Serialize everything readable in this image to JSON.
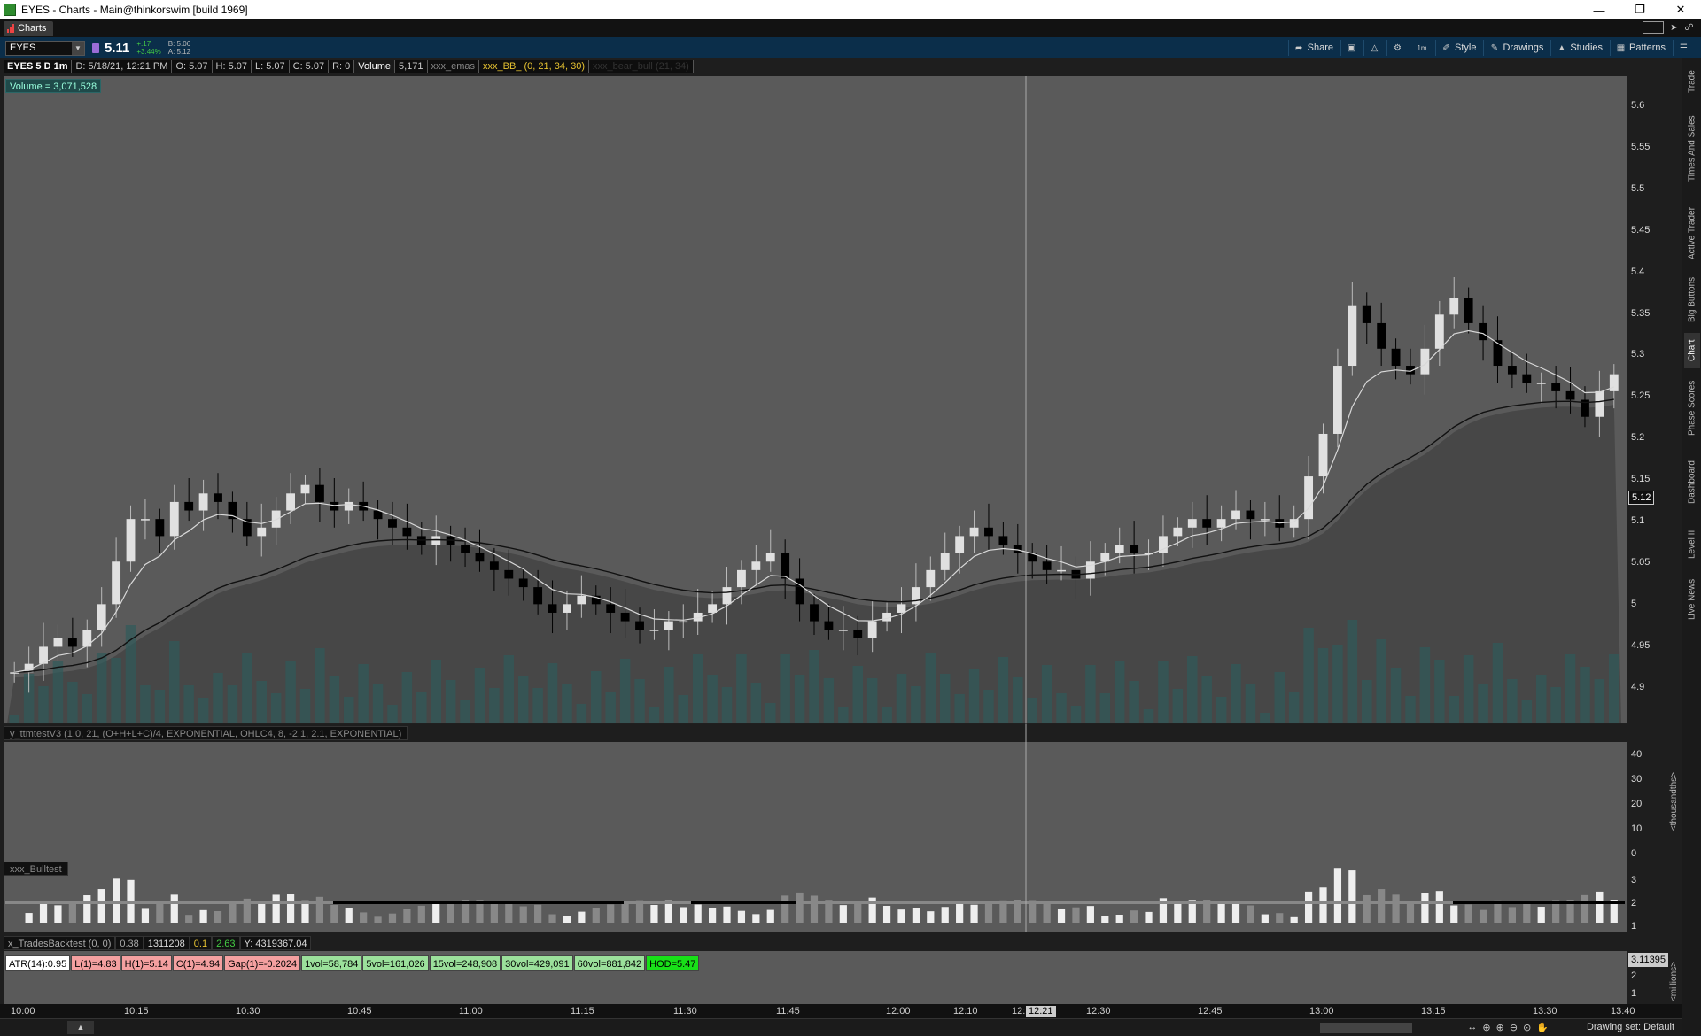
{
  "window": {
    "title": "EYES - Charts -  Main@thinkorswim [build 1969]",
    "min_icon": "minimize-icon",
    "max_icon": "restore-icon",
    "close_icon": "close-icon"
  },
  "tabbar": {
    "tab_label": "Charts"
  },
  "toolbar": {
    "symbol": "EYES",
    "last": "5.11",
    "change": "+.17",
    "change_pct": "+3.44%",
    "bid": "B: 5.06",
    "ask": "A: 5.12",
    "buttons": {
      "share": "Share",
      "style": "Style",
      "drawings": "Drawings",
      "studies": "Studies",
      "patterns": "Patterns"
    },
    "timeframe_icon": "1m"
  },
  "infobar": {
    "symbol": "EYES 5 D 1m",
    "date": "D: 5/18/21, 12:21 PM",
    "open": "O: 5.07",
    "high": "H: 5.07",
    "low": "L: 5.07",
    "close": "C: 5.07",
    "range": "R: 0",
    "volume_label": "Volume",
    "volume": "5,171",
    "emas": "xxx_emas",
    "bb": "xxx_BB_ (0, 21, 34, 30)",
    "bearbull": "xxx_bear_bull (21, 34)"
  },
  "volume_badge": "Volume = 3,071,528",
  "price_badge": "5.12",
  "price_axis": [
    "5.6",
    "5.55",
    "5.5",
    "5.45",
    "5.4",
    "5.35",
    "5.3",
    "5.25",
    "5.2",
    "5.15",
    "5.1",
    "5.05",
    "5",
    "4.95",
    "4.9"
  ],
  "study1": {
    "header": "y_ttmtestV3 (1.0, 21, (O+H+L+C)/4, EXPONENTIAL, OHLC4, 8, -2.1, 2.1, EXPONENTIAL)",
    "axis": [
      "40",
      "30",
      "20",
      "10",
      "0"
    ],
    "unit": "<thousandths>"
  },
  "study2": {
    "header": "xxx_Bulltest",
    "axis": [
      "3",
      "2",
      "1"
    ]
  },
  "backtest": {
    "label": "x_TradesBacktest (0, 0)",
    "v1": "0.38",
    "v2": "1311208",
    "v3": "0.1",
    "v4": "2.63",
    "v5": "Y: 4319367.04"
  },
  "stats": {
    "atr": "ATR(14):0.95",
    "low1": "L(1)=4.83",
    "high1": "H(1)=5.14",
    "close1": "C(1)=4.94",
    "gap": "Gap(1)=-0.2024",
    "v1": "1vol=58,784",
    "v5": "5vol=161,026",
    "v15": "15vol=248,908",
    "v30": "30vol=429,091",
    "v60": "60vol=881,842",
    "hod": "HOD=5.47"
  },
  "volpane": {
    "badge": "3.11395",
    "axis": [
      "2",
      "1"
    ],
    "unit": "<millions>"
  },
  "time_axis": [
    "10:00",
    "10:15",
    "10:30",
    "10:45",
    "11:00",
    "11:15",
    "11:30",
    "11:45",
    "12:00",
    "12:10",
    "12:",
    "12:30",
    "12:45",
    "13:00",
    "13:15",
    "13:30",
    "13:40"
  ],
  "cursor_time": "12:21",
  "bottombar": {
    "drawing_set": "Drawing set: Default"
  },
  "right_tabs": [
    "Trade",
    "Times And Sales",
    "Active Trader",
    "Big Buttons",
    "Chart",
    "Phase Scores",
    "Dashboard",
    "Level II",
    "Live News"
  ],
  "colors": {
    "bg_chart": "#5a5a5a",
    "up": "#e0e0e0",
    "down": "#000000",
    "ema_fast": "#d0d0d0",
    "ema_slow": "#111111",
    "volume": "#2f5a5a",
    "accent": "#e8c432",
    "toolbar": "#0b2e4a"
  },
  "chart_data": {
    "type": "candlestick",
    "x_start": "10:00",
    "x_end": "13:40",
    "ylim": [
      4.86,
      5.62
    ],
    "close": [
      4.92,
      4.93,
      4.95,
      4.96,
      4.95,
      4.97,
      5.0,
      5.05,
      5.1,
      5.1,
      5.08,
      5.12,
      5.11,
      5.13,
      5.12,
      5.1,
      5.08,
      5.09,
      5.11,
      5.13,
      5.14,
      5.12,
      5.11,
      5.12,
      5.11,
      5.1,
      5.09,
      5.08,
      5.07,
      5.08,
      5.07,
      5.06,
      5.05,
      5.04,
      5.03,
      5.02,
      5.0,
      4.99,
      5.0,
      5.01,
      5.0,
      4.99,
      4.98,
      4.97,
      4.97,
      4.98,
      4.98,
      4.99,
      5.0,
      5.02,
      5.04,
      5.05,
      5.06,
      5.03,
      5.0,
      4.98,
      4.97,
      4.97,
      4.96,
      4.98,
      4.99,
      5.0,
      5.02,
      5.04,
      5.06,
      5.08,
      5.09,
      5.08,
      5.07,
      5.06,
      5.05,
      5.04,
      5.04,
      5.03,
      5.05,
      5.06,
      5.07,
      5.06,
      5.06,
      5.08,
      5.09,
      5.1,
      5.09,
      5.1,
      5.11,
      5.1,
      5.1,
      5.09,
      5.1,
      5.15,
      5.2,
      5.28,
      5.35,
      5.33,
      5.3,
      5.28,
      5.27,
      5.3,
      5.34,
      5.36,
      5.33,
      5.31,
      5.28,
      5.27,
      5.26,
      5.26,
      5.25,
      5.24,
      5.22,
      5.25,
      5.27
    ]
  }
}
